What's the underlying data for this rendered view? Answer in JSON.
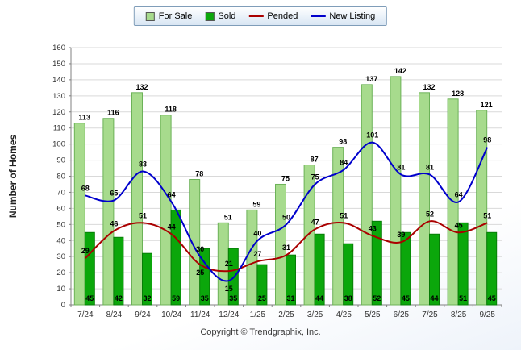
{
  "chart_data": {
    "type": "combo",
    "title": "",
    "categories": [
      "7/24",
      "8/24",
      "9/24",
      "10/24",
      "11/24",
      "12/24",
      "1/25",
      "2/25",
      "3/25",
      "4/25",
      "5/25",
      "6/25",
      "7/25",
      "8/25",
      "9/25"
    ],
    "series": [
      {
        "name": "For Sale",
        "type": "bar",
        "color": "#A7DB8D",
        "border_color": "#6CB258",
        "values": [
          113,
          116,
          132,
          118,
          78,
          51,
          59,
          75,
          87,
          98,
          137,
          142,
          132,
          128,
          121
        ]
      },
      {
        "name": "Sold",
        "type": "bar",
        "color": "#0BA70B",
        "border_color": "#077D07",
        "values": [
          45,
          42,
          32,
          59,
          35,
          35,
          25,
          31,
          44,
          38,
          52,
          45,
          44,
          51,
          45
        ]
      },
      {
        "name": "Pended",
        "type": "line",
        "color": "#AA0000",
        "values": [
          29,
          46,
          51,
          44,
          25,
          21,
          27,
          31,
          47,
          51,
          43,
          39,
          52,
          45,
          51
        ]
      },
      {
        "name": "New Listing",
        "type": "line",
        "color": "#0000CC",
        "values": [
          68,
          65,
          83,
          64,
          30,
          15,
          40,
          50,
          75,
          84,
          101,
          81,
          81,
          64,
          98
        ]
      }
    ],
    "xlabel": "",
    "ylabel": "Number of Homes",
    "ylim": [
      0,
      160
    ],
    "ytick_step": 10,
    "grid": true,
    "legend_position": "top",
    "label_color": "#000000",
    "axis_color": "#808080",
    "grid_color": "#D9D9D9",
    "tick_label_color": "#333333"
  },
  "footer": {
    "copyright": "Copyright © Trendgraphix, Inc."
  }
}
